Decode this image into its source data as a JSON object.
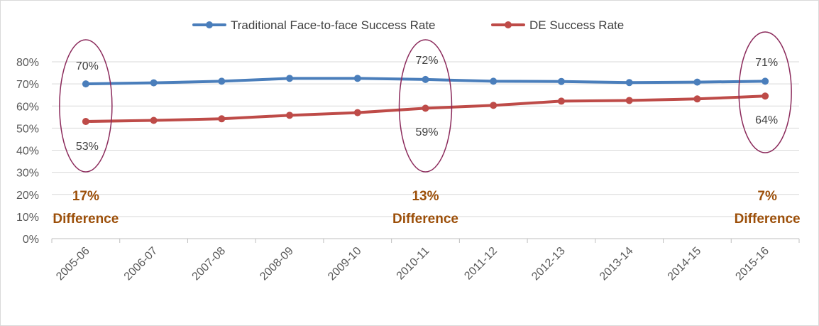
{
  "chart_data": {
    "type": "line",
    "categories": [
      "2005-06",
      "2006-07",
      "2007-08",
      "2008-09",
      "2009-10",
      "2010-11",
      "2011-12",
      "2012-13",
      "2013-14",
      "2014-15",
      "2015-16"
    ],
    "series": [
      {
        "name": "Traditional Face-to-face Success Rate",
        "color": "#4a7ebb",
        "values": [
          0.7,
          0.705,
          0.712,
          0.725,
          0.725,
          0.72,
          0.712,
          0.711,
          0.706,
          0.708,
          0.712
        ]
      },
      {
        "name": "DE Success Rate",
        "color": "#be4b48",
        "values": [
          0.53,
          0.535,
          0.542,
          0.558,
          0.57,
          0.59,
          0.603,
          0.622,
          0.625,
          0.632,
          0.645
        ]
      }
    ],
    "ylim": [
      0,
      0.8
    ],
    "yticks": [
      "0%",
      "10%",
      "20%",
      "30%",
      "40%",
      "50%",
      "60%",
      "70%",
      "80%"
    ],
    "grid": true,
    "legend_position": "top",
    "highlights": [
      {
        "category_index": 0,
        "top_label": "70%",
        "bottom_label": "53%",
        "diff_value": "17%",
        "diff_word": "Difference"
      },
      {
        "category_index": 5,
        "top_label": "72%",
        "bottom_label": "59%",
        "diff_value": "13%",
        "diff_word": "Difference"
      },
      {
        "category_index": 10,
        "top_label": "71%",
        "bottom_label": "64%",
        "diff_value": "7%",
        "diff_word": "Difference"
      }
    ],
    "highlight_color": "#8b2a5b",
    "difference_color": "#9c4f09",
    "gridline_color": "#d9d9d9"
  }
}
